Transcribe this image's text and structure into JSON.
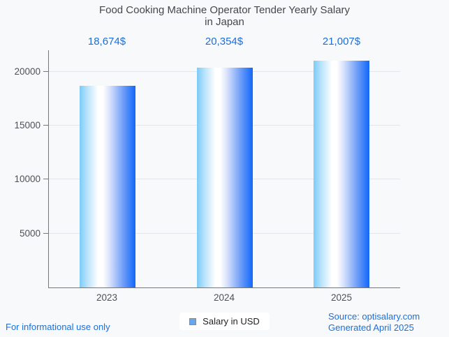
{
  "title": {
    "line1": "Food Cooking Machine Operator Tender Yearly Salary",
    "line2": "in Japan"
  },
  "chart_data": {
    "type": "bar",
    "title": "Food Cooking Machine Operator Tender Yearly Salary in Japan",
    "categories": [
      "2023",
      "2024",
      "2025"
    ],
    "values": [
      18674,
      20354,
      21007
    ],
    "value_labels": [
      "18,674$",
      "20,354$",
      "21,007$"
    ],
    "series_name": "Salary in USD",
    "xlabel": "",
    "ylabel": "",
    "ylim": [
      0,
      22000
    ],
    "yticks": [
      5000,
      10000,
      15000,
      20000
    ],
    "ytick_labels": [
      "5000",
      "10000",
      "15000",
      "20000"
    ],
    "grid": true,
    "legend_position": "bottom",
    "bar_style": "cylinder-gradient"
  },
  "legend": {
    "label": "Salary in USD"
  },
  "footer": {
    "left": "For informational use only",
    "source": "Source: optisalary.com",
    "generated": "Generated April 2025"
  },
  "colors": {
    "accent-blue": "#1a6fdb",
    "bar-left": "#7bcbf8",
    "bar-right": "#1266fa",
    "legend-swatch": "#67a8ec",
    "title-gray": "#43474c",
    "tick-gray": "#4d5156",
    "axis-gray": "#75787b",
    "grid-gray": "#e2e5e9",
    "page-bg": "#f8f9fb"
  }
}
